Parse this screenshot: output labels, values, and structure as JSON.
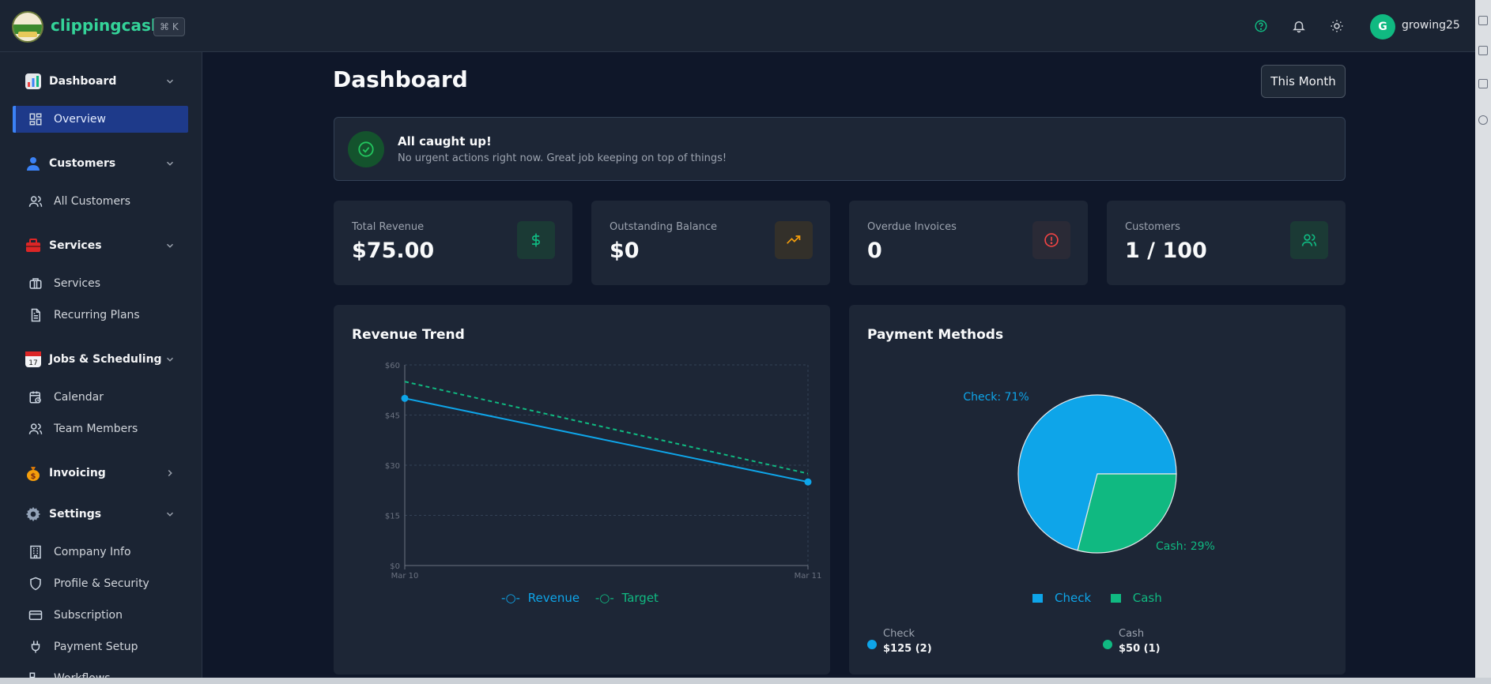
{
  "header": {
    "brand": "clippingcash",
    "shortcut": "⌘ K",
    "username": "growing25",
    "avatar_initial": "G",
    "icons": [
      "help-circle-icon",
      "bell-icon",
      "sun-icon"
    ]
  },
  "sidebar": {
    "sections": [
      {
        "label": "Dashboard",
        "icon": "bar-chart-emoji",
        "expanded": true,
        "items": [
          {
            "label": "Overview",
            "icon": "layout-grid-icon",
            "active": true
          }
        ]
      },
      {
        "label": "Customers",
        "icon": "person-emoji",
        "expanded": true,
        "items": [
          {
            "label": "All Customers",
            "icon": "users-icon"
          }
        ]
      },
      {
        "label": "Services",
        "icon": "toolbox-emoji",
        "expanded": true,
        "items": [
          {
            "label": "Services",
            "icon": "briefcase-icon"
          },
          {
            "label": "Recurring Plans",
            "icon": "file-text-icon"
          }
        ]
      },
      {
        "label": "Jobs & Scheduling",
        "icon": "calendar-emoji",
        "expanded": true,
        "items": [
          {
            "label": "Calendar",
            "icon": "calendar-clock-icon"
          },
          {
            "label": "Team Members",
            "icon": "users-icon"
          }
        ]
      },
      {
        "label": "Invoicing",
        "icon": "money-bag-emoji",
        "expanded": false,
        "items": []
      },
      {
        "label": "Settings",
        "icon": "gear-emoji",
        "expanded": true,
        "items": [
          {
            "label": "Company Info",
            "icon": "building-icon"
          },
          {
            "label": "Profile & Security",
            "icon": "shield-icon"
          },
          {
            "label": "Subscription",
            "icon": "credit-card-icon"
          },
          {
            "label": "Payment Setup",
            "icon": "plug-icon"
          },
          {
            "label": "Workflows",
            "icon": "workflow-icon"
          }
        ]
      }
    ]
  },
  "main": {
    "title": "Dashboard",
    "period_button": "This Month",
    "notice": {
      "title": "All caught up!",
      "subtitle": "No urgent actions right now. Great job keeping on top of things!"
    },
    "stats": [
      {
        "label": "Total Revenue",
        "value": "$75.00",
        "icon": "dollar-icon",
        "color": "#10b981"
      },
      {
        "label": "Outstanding Balance",
        "value": "$0",
        "icon": "trending-up-icon",
        "color": "#f59e0b"
      },
      {
        "label": "Overdue Invoices",
        "value": "0",
        "icon": "alert-circle-icon",
        "color": "#ef4444"
      },
      {
        "label": "Customers",
        "value": "1 / 100",
        "icon": "users-icon",
        "color": "#10b981"
      }
    ],
    "revenue_panel": {
      "title": "Revenue Trend"
    },
    "payment_panel": {
      "title": "Payment Methods",
      "summary": [
        {
          "name": "Check",
          "value": "$125 (2)",
          "color": "#0ea5e9"
        },
        {
          "name": "Cash",
          "value": "$50 (1)",
          "color": "#10b981"
        }
      ]
    }
  },
  "chart_data": [
    {
      "type": "line",
      "title": "Revenue Trend",
      "x": [
        "Mar 10",
        "Mar 11"
      ],
      "y_ticks": [
        "$0",
        "$15",
        "$30",
        "$45",
        "$60"
      ],
      "ylim": [
        0,
        60
      ],
      "grid": true,
      "legend": "bottom",
      "series": [
        {
          "name": "Revenue",
          "values": [
            50,
            25
          ],
          "color": "#0ea5e9",
          "style": "solid"
        },
        {
          "name": "Target",
          "values": [
            55,
            27.5
          ],
          "color": "#10b981",
          "style": "dashed"
        }
      ]
    },
    {
      "type": "pie",
      "title": "Payment Methods",
      "legend": "bottom",
      "slices": [
        {
          "name": "Check",
          "value": 71,
          "label": "Check: 71%",
          "color": "#0ea5e9"
        },
        {
          "name": "Cash",
          "value": 29,
          "label": "Cash: 29%",
          "color": "#10b981"
        }
      ]
    }
  ]
}
